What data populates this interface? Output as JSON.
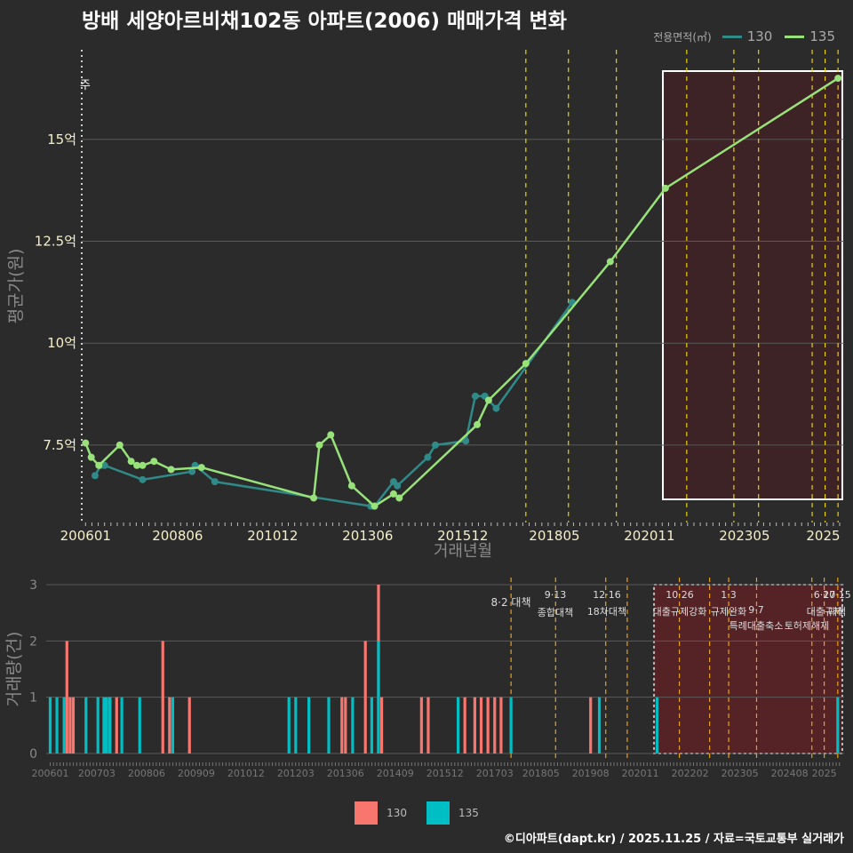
{
  "header": {
    "title": "방배 세양아르비채102동 아파트(2006) 매매가격 변화"
  },
  "legend_top": {
    "title": "전용면적(㎡)",
    "items": [
      {
        "label": "130",
        "color": "#2f8a88"
      },
      {
        "label": "135",
        "color": "#98e27a"
      }
    ]
  },
  "legend_bottom": {
    "items": [
      {
        "label": "130",
        "color": "#f8766d"
      },
      {
        "label": "135",
        "color": "#00bfc4"
      }
    ]
  },
  "caption": "©디아파트(dapt.kr) / 2025.11.25 / 자료=국토교통부 실거래가",
  "chart_data": [
    {
      "type": "line",
      "title": "방배 세양아르비채102동 아파트(2006) 매매가격 변화",
      "xlabel": "거래년월",
      "ylabel": "평균가(원)",
      "x_tick_labels": [
        "200601",
        "200806",
        "201012",
        "201306",
        "201512",
        "201805",
        "202011",
        "202305",
        "2025"
      ],
      "y_tick_labels": [
        "7.5억",
        "10억",
        "12.5억",
        "15억"
      ],
      "y_tick_values": [
        7.5,
        10,
        12.5,
        15
      ],
      "ylim": [
        5.6,
        17.2
      ],
      "xlim": [
        2005.9,
        2025.95
      ],
      "corner_label": "주",
      "policy_lines": [
        2017.58,
        2018.7,
        2019.96,
        2021.81,
        2023.05,
        2023.7,
        2025.11,
        2025.45,
        2025.79
      ],
      "highlight_range": [
        2020.95,
        2025.95
      ],
      "series": [
        {
          "name": "130",
          "color": "#2f8a88",
          "x": [
            2006.25,
            2006.4,
            2006.5,
            2007.5,
            2008.8,
            2008.88,
            2009.4,
            2013.5,
            2013.6,
            2014.1,
            2014.2,
            2015.0,
            2015.2,
            2016.0,
            2016.25,
            2016.5,
            2016.8,
            2018.8
          ],
          "y": [
            6.75,
            7.0,
            7.0,
            6.65,
            6.85,
            7.0,
            6.6,
            6.0,
            6.0,
            6.6,
            6.5,
            7.2,
            7.5,
            7.6,
            8.7,
            8.7,
            8.4,
            11.0
          ]
        },
        {
          "name": "135",
          "color": "#98e27a",
          "x": [
            2006.0,
            2006.15,
            2006.35,
            2006.9,
            2007.2,
            2007.35,
            2007.5,
            2007.8,
            2008.25,
            2009.05,
            2012.0,
            2012.15,
            2012.45,
            2013.0,
            2013.6,
            2014.1,
            2014.25,
            2016.3,
            2016.6,
            2017.58,
            2019.8,
            2021.25,
            2025.79
          ],
          "y": [
            7.55,
            7.2,
            7.0,
            7.5,
            7.1,
            7.0,
            7.0,
            7.1,
            6.9,
            6.95,
            6.2,
            7.5,
            7.75,
            6.5,
            6.0,
            6.3,
            6.2,
            8.0,
            8.6,
            9.5,
            12.0,
            13.8,
            16.5
          ]
        }
      ]
    },
    {
      "type": "bar",
      "ylabel": "거래량(건)",
      "x_tick_labels": [
        "200601",
        "200703",
        "200806",
        "200909",
        "201012",
        "201203",
        "201306",
        "201409",
        "201512",
        "201703",
        "201805",
        "201908",
        "202011",
        "202202",
        "202305",
        "202408",
        "2025"
      ],
      "y_tick_values": [
        0,
        1,
        2,
        3
      ],
      "ylim": [
        0,
        3
      ],
      "xlim": [
        2005.9,
        2025.95
      ],
      "highlight_range": [
        2020.95,
        2025.95
      ],
      "policy_lines": [
        2017.58,
        2018.7,
        2019.96,
        2020.5,
        2021.81,
        2022.57,
        2023.05,
        2023.75,
        2025.14,
        2025.45,
        2025.79
      ],
      "annotations": [
        {
          "date": "8·2",
          "text": "대책",
          "line": 1
        },
        {
          "date": "9·13",
          "text": "종합대책",
          "line": 0
        },
        {
          "date": "12·16",
          "text": "18차대책",
          "line": 0
        },
        {
          "date": "10·26",
          "text": "대출규제강화",
          "line": 0
        },
        {
          "date": "1·3",
          "text": "규제완화",
          "line": 0
        },
        {
          "date": "9·7",
          "text": "특례대출축소",
          "line": 1
        },
        {
          "date": "토허제해제",
          "text": "",
          "line": 1
        },
        {
          "date": "6·27",
          "text": "대출규제",
          "line": 0
        },
        {
          "date": "10·15",
          "text": "대책",
          "line": 0
        }
      ],
      "series": [
        {
          "name": "130",
          "color": "#f8766d",
          "x": [
            2006.42,
            2006.5,
            2006.58,
            2007.5,
            2007.67,
            2008.83,
            2009.0,
            2009.5,
            2013.33,
            2013.42,
            2013.92,
            2014.25,
            2014.33,
            2015.33,
            2015.5,
            2016.42,
            2016.67,
            2016.83,
            2017.0,
            2017.17,
            2017.33,
            2019.58
          ],
          "y": [
            2,
            1,
            1,
            1,
            1,
            2,
            1,
            1,
            1,
            1,
            2,
            3,
            1,
            1,
            1,
            1,
            1,
            1,
            1,
            1,
            1,
            1
          ]
        },
        {
          "name": "135",
          "color": "#00bfc4",
          "x": [
            2006.0,
            2006.17,
            2006.35,
            2006.9,
            2007.2,
            2007.35,
            2007.42,
            2007.5,
            2007.8,
            2008.25,
            2009.08,
            2012.0,
            2012.17,
            2012.5,
            2013.0,
            2013.6,
            2014.08,
            2014.25,
            2016.25,
            2017.58,
            2019.8,
            2021.25,
            2025.79
          ],
          "y": [
            1,
            1,
            1,
            1,
            1,
            1,
            1,
            1,
            1,
            1,
            1,
            1,
            1,
            1,
            1,
            1,
            1,
            2,
            1,
            1,
            1,
            1,
            1
          ]
        }
      ]
    }
  ]
}
